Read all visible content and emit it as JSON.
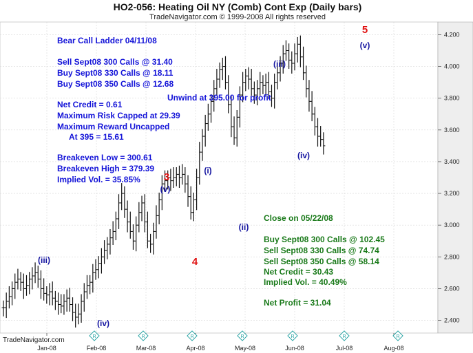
{
  "header": {
    "title": "HO2-056:  Heating Oil NY (Comb) Cont Exp  (Daily bars)",
    "subtitle": "TradeNavigator.com © 1999-2008 All rights reserved"
  },
  "footer": {
    "brand": "TradeNavigator.com"
  },
  "annotations": {
    "left_block": [
      "Bear Call Ladder 04/11/08",
      "Sell Sept08 300 Calls @ 31.40",
      "Buy Sept08 330 Calls @ 18.11",
      "Buy Sept08 350 Calls @ 12.68",
      "Net Credit = 0.61",
      "Maximum Risk Capped at 29.39",
      "Maximum Reward Uncapped",
      "At 395 = 15.61",
      "Breakeven Low = 300.61",
      "Breakeven High = 379.39",
      "Implied Vol. = 35.85%"
    ],
    "unwind": "Unwind at 395.00 for profit",
    "right_block": [
      "Close on 05/22/08",
      "Buy Sept08 300 Calls @ 102.45",
      "Sell Sept08 330 Calls @ 74.74",
      "Sell Sept08 350 Calls @ 58.14",
      "Net Credit = 30.43",
      "Implied Vol. = 40.49%",
      "Net Profit = 31.04"
    ],
    "waves": [
      "(iii)",
      "(iv)",
      "(v)",
      "3",
      "4",
      "(i)",
      "(ii)",
      "(iii)",
      "(iv)",
      "(v)",
      "5"
    ]
  },
  "chart_data": {
    "type": "bar",
    "title": "HO2-056:  Heating Oil NY (Comb) Cont Exp  (Daily bars)",
    "x_tick_labels": [
      "Jan-08",
      "Feb-08",
      "Mar-08",
      "Apr-08",
      "May-08",
      "Jun-08",
      "Jul-08",
      "Aug-08"
    ],
    "y_tick_labels": [
      "2.400",
      "2.600",
      "2.800",
      "3.000",
      "3.200",
      "3.400",
      "3.600",
      "3.800",
      "4.000",
      "4.200"
    ],
    "ylim": [
      2.32,
      4.28
    ],
    "grid": true,
    "series": [
      {
        "style": "ohlc",
        "points": [
          [
            0.0,
            2.48
          ],
          [
            0.06,
            2.52
          ],
          [
            0.12,
            2.55
          ],
          [
            0.18,
            2.6
          ],
          [
            0.24,
            2.64
          ],
          [
            0.3,
            2.66
          ],
          [
            0.36,
            2.64
          ],
          [
            0.42,
            2.6
          ],
          [
            0.48,
            2.62
          ],
          [
            0.54,
            2.66
          ],
          [
            0.6,
            2.68
          ],
          [
            0.66,
            2.7
          ],
          [
            0.72,
            2.66
          ],
          [
            0.78,
            2.6
          ],
          [
            0.84,
            2.57
          ],
          [
            0.9,
            2.56
          ],
          [
            0.96,
            2.58
          ],
          [
            1.02,
            2.54
          ],
          [
            1.08,
            2.52
          ],
          [
            1.14,
            2.5
          ],
          [
            1.2,
            2.49
          ],
          [
            1.26,
            2.52
          ],
          [
            1.32,
            2.54
          ],
          [
            1.38,
            2.5
          ],
          [
            1.44,
            2.45
          ],
          [
            1.5,
            2.42
          ],
          [
            1.56,
            2.44
          ],
          [
            1.62,
            2.52
          ],
          [
            1.68,
            2.58
          ],
          [
            1.74,
            2.62
          ],
          [
            1.8,
            2.64
          ],
          [
            1.86,
            2.7
          ],
          [
            1.92,
            2.72
          ],
          [
            1.98,
            2.76
          ],
          [
            2.04,
            2.8
          ],
          [
            2.1,
            2.84
          ],
          [
            2.16,
            2.88
          ],
          [
            2.22,
            2.92
          ],
          [
            2.28,
            2.96
          ],
          [
            2.34,
            3.04
          ],
          [
            2.4,
            3.14
          ],
          [
            2.46,
            3.2
          ],
          [
            2.52,
            3.1
          ],
          [
            2.58,
            3.02
          ],
          [
            2.64,
            2.96
          ],
          [
            2.7,
            2.9
          ],
          [
            2.76,
            3.0
          ],
          [
            2.82,
            3.08
          ],
          [
            2.88,
            3.14
          ],
          [
            2.94,
            3.02
          ],
          [
            3.0,
            2.9
          ],
          [
            3.06,
            2.88
          ],
          [
            3.12,
            2.96
          ],
          [
            3.18,
            3.06
          ],
          [
            3.24,
            3.16
          ],
          [
            3.3,
            3.26
          ],
          [
            3.36,
            3.28
          ],
          [
            3.42,
            3.3
          ],
          [
            3.48,
            3.28
          ],
          [
            3.54,
            3.3
          ],
          [
            3.6,
            3.32
          ],
          [
            3.66,
            3.3
          ],
          [
            3.72,
            3.32
          ],
          [
            3.78,
            3.26
          ],
          [
            3.84,
            3.18
          ],
          [
            3.9,
            3.08
          ],
          [
            3.96,
            3.16
          ],
          [
            4.02,
            3.3
          ],
          [
            4.08,
            3.46
          ],
          [
            4.14,
            3.56
          ],
          [
            4.2,
            3.64
          ],
          [
            4.26,
            3.7
          ],
          [
            4.32,
            3.78
          ],
          [
            4.38,
            3.86
          ],
          [
            4.44,
            3.92
          ],
          [
            4.5,
            3.98
          ],
          [
            4.56,
            4.0
          ],
          [
            4.62,
            3.9
          ],
          [
            4.68,
            3.76
          ],
          [
            4.74,
            3.62
          ],
          [
            4.8,
            3.55
          ],
          [
            4.86,
            3.68
          ],
          [
            4.92,
            3.82
          ],
          [
            4.98,
            3.9
          ],
          [
            5.04,
            3.94
          ],
          [
            5.1,
            3.92
          ],
          [
            5.16,
            3.86
          ],
          [
            5.22,
            3.82
          ],
          [
            5.28,
            3.86
          ],
          [
            5.34,
            3.9
          ],
          [
            5.4,
            3.88
          ],
          [
            5.46,
            3.9
          ],
          [
            5.52,
            3.84
          ],
          [
            5.58,
            3.8
          ],
          [
            5.64,
            3.9
          ],
          [
            5.7,
            3.96
          ],
          [
            5.76,
            4.02
          ],
          [
            5.82,
            4.08
          ],
          [
            5.88,
            4.1
          ],
          [
            5.94,
            4.04
          ],
          [
            6.0,
            4.02
          ],
          [
            6.06,
            4.08
          ],
          [
            6.12,
            4.14
          ],
          [
            6.18,
            4.06
          ],
          [
            6.24,
            3.96
          ],
          [
            6.3,
            3.86
          ],
          [
            6.36,
            3.78
          ],
          [
            6.42,
            3.7
          ],
          [
            6.48,
            3.62
          ],
          [
            6.54,
            3.56
          ],
          [
            6.6,
            3.54
          ],
          [
            6.66,
            3.5
          ]
        ]
      }
    ]
  },
  "colors": {
    "background": "#ffffff",
    "bars": "#111111",
    "grid": "#d8d8d8",
    "annotation_blue": "#1414d8",
    "annotation_green": "#1a7a1a",
    "wave_red": "#e01010",
    "marker": "#20a0a0"
  },
  "icons": [
    "earnings-marker-icon"
  ]
}
